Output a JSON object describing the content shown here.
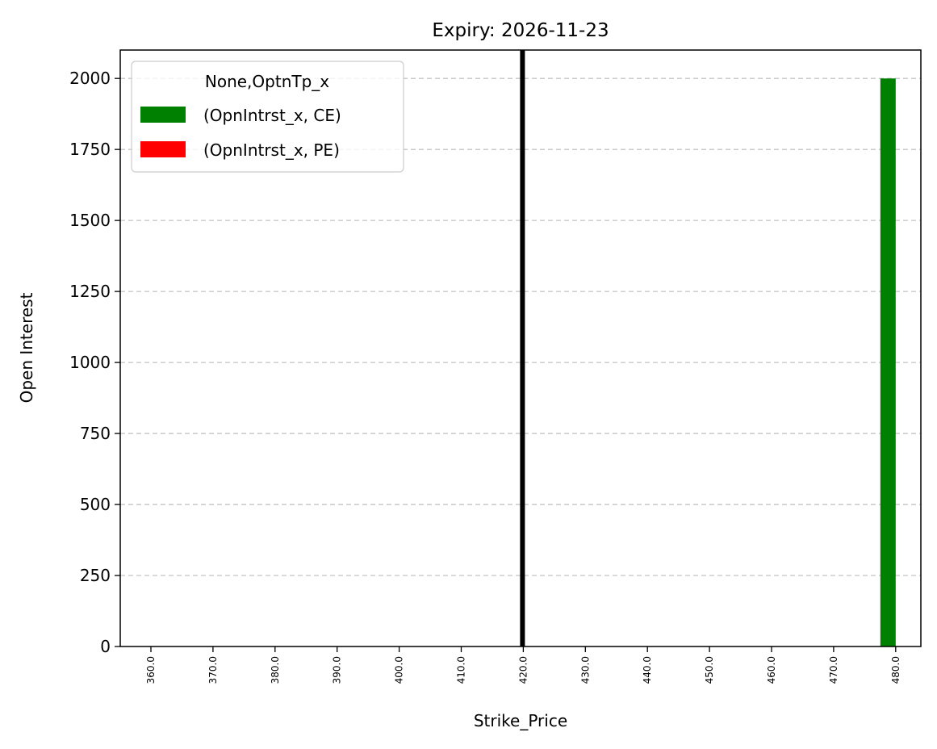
{
  "chart_data": {
    "type": "bar",
    "title": "Expiry: 2026-11-23",
    "xlabel": "Strike_Price",
    "ylabel": "Open Interest",
    "categories": [
      "360.0",
      "370.0",
      "380.0",
      "390.0",
      "400.0",
      "410.0",
      "420.0",
      "430.0",
      "440.0",
      "450.0",
      "460.0",
      "470.0",
      "480.0"
    ],
    "series": [
      {
        "name": "(OpnIntrst_x, CE)",
        "color": "#008000",
        "values": [
          0,
          0,
          0,
          0,
          0,
          0,
          0,
          0,
          0,
          0,
          0,
          0,
          2000
        ]
      },
      {
        "name": "(OpnIntrst_x, PE)",
        "color": "#ff0000",
        "values": [
          0,
          0,
          0,
          0,
          0,
          0,
          0,
          0,
          0,
          0,
          0,
          0,
          0
        ]
      }
    ],
    "ylim": [
      0,
      2100
    ],
    "yticks": [
      "0",
      "250",
      "500",
      "750",
      "1000",
      "1250",
      "1500",
      "1750",
      "2000"
    ],
    "grid": "y dashed",
    "legend": {
      "title": "None,OptnTp_x",
      "placement": "top-left"
    },
    "reference_line": {
      "x_category": "420.0",
      "color": "#000000"
    }
  }
}
